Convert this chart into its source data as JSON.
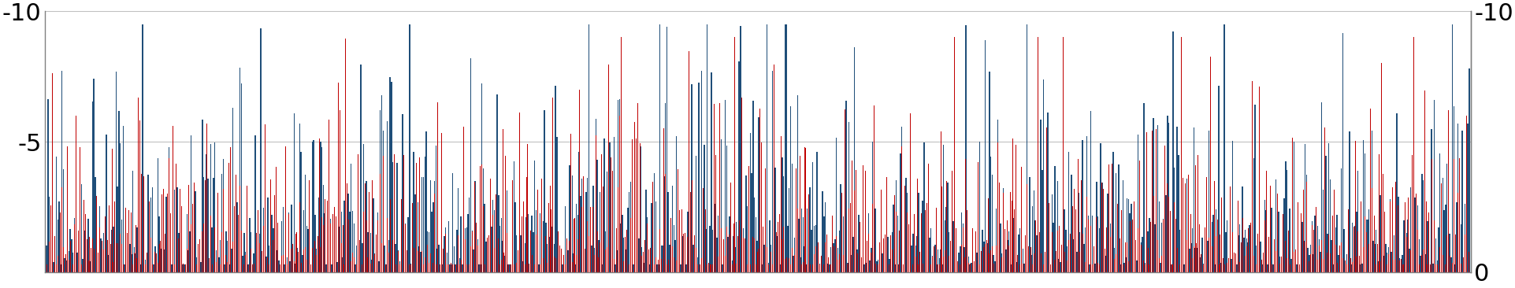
{
  "n": 1024,
  "seed_blue": 42,
  "seed_red": 7,
  "ylim": [
    -10,
    0
  ],
  "yticks_left": [
    -10,
    -5
  ],
  "ytick_labels_left": [
    "-10",
    "-5"
  ],
  "yticks_right": [
    -10,
    0
  ],
  "ytick_labels_right": [
    "-10",
    "0"
  ],
  "color_blue": "#1F4E79",
  "color_red": "#C00000",
  "bg_color": "#FFFFFF",
  "grid_color": "#C0C0C0",
  "grid_lw": 0.8,
  "spine_color": "#808080"
}
